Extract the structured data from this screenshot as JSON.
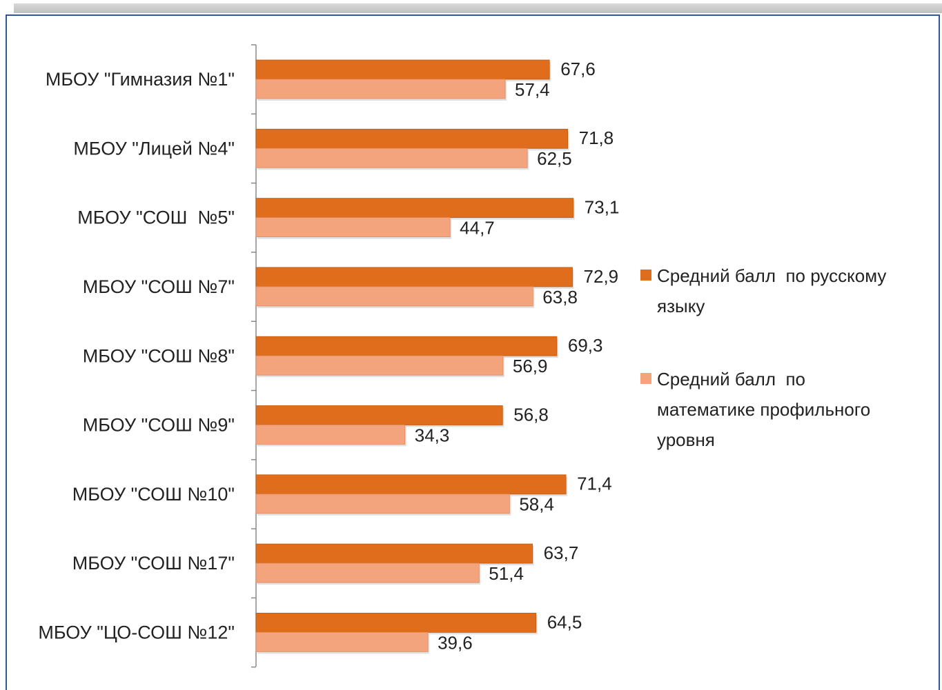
{
  "chart_data": {
    "type": "hbar",
    "categories": [
      "МБОУ \"Гимназия №1\"",
      "МБОУ \"Лицей №4\"",
      "МБОУ \"СОШ  №5\"",
      "МБОУ \"СОШ №7\"",
      "МБОУ \"СОШ №8\"",
      "МБОУ \"СОШ №9\"",
      "МБОУ \"СОШ №10\"",
      "МБОУ \"СОШ №17\"",
      "МБОУ \"ЦО-СОШ №12\""
    ],
    "series": [
      {
        "name": "Средний балл  по русскому языку",
        "color": "#e06d1c",
        "values": [
          67.6,
          71.8,
          73.1,
          72.9,
          69.3,
          56.8,
          71.4,
          63.7,
          64.5
        ],
        "value_labels": [
          "67,6",
          "71,8",
          "73,1",
          "72,9",
          "69,3",
          "56,8",
          "71,4",
          "63,7",
          "64,5"
        ]
      },
      {
        "name": "Средний балл  по математике профильного уровня",
        "color": "#f4a47c",
        "values": [
          57.4,
          62.5,
          44.7,
          63.8,
          56.9,
          34.3,
          58.4,
          51.4,
          39.6
        ],
        "value_labels": [
          "57,4",
          "62,5",
          "44,7",
          "63,8",
          "56,9",
          "34,3",
          "58,4",
          "51,4",
          "39,6"
        ]
      }
    ],
    "legend": "right"
  }
}
